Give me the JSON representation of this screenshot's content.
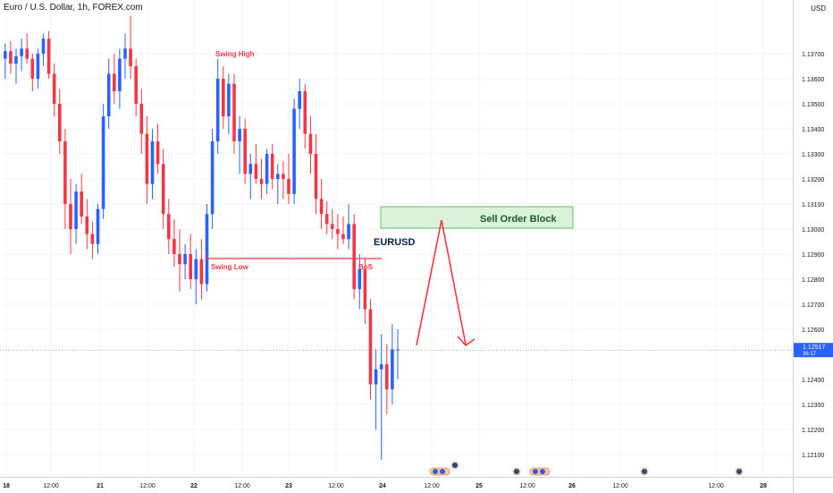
{
  "header": {
    "title": "Euro / U.S. Dollar, 1h, FOREX.com",
    "currency": "USD"
  },
  "colors": {
    "up": "#2962ff",
    "down": "#f23645",
    "drawing": "#f23645",
    "block_fill": "#d9f2d9",
    "block_border": "#4caf50",
    "price_tag": "#2962ff",
    "grid": "#f0f3fa",
    "axis_text": "#131722"
  },
  "price_axis": {
    "ticks": [
      "1.13700",
      "1.13600",
      "1.13500",
      "1.13400",
      "1.13300",
      "1.13200",
      "1.13100",
      "1.13000",
      "1.12900",
      "1.12800",
      "1.12700",
      "1.12600",
      "1.12400",
      "1.12300",
      "1.12200",
      "1.12100"
    ],
    "last_price": "1.12517",
    "countdown": "36:17"
  },
  "time_axis": {
    "ticks": [
      "18",
      "12:00",
      "21",
      "12:00",
      "22",
      "12:00",
      "23",
      "12:00",
      "24",
      "12:00",
      "25",
      "12:00",
      "26",
      "12:00",
      "12:00",
      "28"
    ]
  },
  "annotations": {
    "swing_high": "Swing High",
    "swing_low": "Swing Low",
    "bos": "BoS",
    "order_block": "Sell Order Block",
    "symbol_label": "EURUSD"
  },
  "chart_data": {
    "type": "candlestick",
    "symbol": "EURUSD",
    "interval": "1h",
    "ylim": [
      1.1205,
      1.1385
    ],
    "log_scale": false,
    "grid": true,
    "last_price": 1.12517,
    "ohlc": [
      [
        1.1368,
        1.1374,
        1.136,
        1.1371
      ],
      [
        1.1371,
        1.1375,
        1.1362,
        1.1366
      ],
      [
        1.1366,
        1.1372,
        1.1358,
        1.1369
      ],
      [
        1.1369,
        1.1376,
        1.1363,
        1.1372
      ],
      [
        1.1372,
        1.1378,
        1.1366,
        1.1368
      ],
      [
        1.1368,
        1.137,
        1.1355,
        1.136
      ],
      [
        1.136,
        1.1372,
        1.1356,
        1.137
      ],
      [
        1.137,
        1.1378,
        1.1365,
        1.1376
      ],
      [
        1.1376,
        1.1379,
        1.136,
        1.1362
      ],
      [
        1.1362,
        1.1366,
        1.1345,
        1.135
      ],
      [
        1.135,
        1.1356,
        1.133,
        1.1335
      ],
      [
        1.1335,
        1.134,
        1.13,
        1.131
      ],
      [
        1.131,
        1.132,
        1.129,
        1.13
      ],
      [
        1.13,
        1.1318,
        1.1294,
        1.1315
      ],
      [
        1.1315,
        1.1322,
        1.1302,
        1.1305
      ],
      [
        1.1305,
        1.1312,
        1.1292,
        1.1298
      ],
      [
        1.1298,
        1.1303,
        1.1288,
        1.1294
      ],
      [
        1.1294,
        1.131,
        1.129,
        1.1308
      ],
      [
        1.1308,
        1.135,
        1.1304,
        1.1345
      ],
      [
        1.1345,
        1.1368,
        1.134,
        1.1362
      ],
      [
        1.1362,
        1.137,
        1.135,
        1.1355
      ],
      [
        1.1355,
        1.1372,
        1.1348,
        1.1368
      ],
      [
        1.1368,
        1.1378,
        1.136,
        1.1372
      ],
      [
        1.1372,
        1.1385,
        1.136,
        1.1365
      ],
      [
        1.1365,
        1.1368,
        1.1345,
        1.135
      ],
      [
        1.135,
        1.1356,
        1.133,
        1.1338
      ],
      [
        1.1338,
        1.1345,
        1.131,
        1.1318
      ],
      [
        1.1318,
        1.134,
        1.1312,
        1.1335
      ],
      [
        1.1335,
        1.1342,
        1.1322,
        1.1326
      ],
      [
        1.1326,
        1.1332,
        1.13,
        1.1306
      ],
      [
        1.1306,
        1.1312,
        1.129,
        1.1296
      ],
      [
        1.1296,
        1.1304,
        1.1285,
        1.129
      ],
      [
        1.129,
        1.13,
        1.1275,
        1.1286
      ],
      [
        1.1286,
        1.1294,
        1.128,
        1.129
      ],
      [
        1.129,
        1.1298,
        1.1276,
        1.128
      ],
      [
        1.128,
        1.1292,
        1.127,
        1.1288
      ],
      [
        1.1288,
        1.1296,
        1.1272,
        1.1278
      ],
      [
        1.1278,
        1.131,
        1.1275,
        1.1306
      ],
      [
        1.1306,
        1.134,
        1.13,
        1.1335
      ],
      [
        1.1335,
        1.1368,
        1.133,
        1.136
      ],
      [
        1.136,
        1.1365,
        1.134,
        1.1345
      ],
      [
        1.1345,
        1.1362,
        1.1338,
        1.1358
      ],
      [
        1.1358,
        1.1362,
        1.133,
        1.1335
      ],
      [
        1.1335,
        1.1345,
        1.1322,
        1.134
      ],
      [
        1.134,
        1.1344,
        1.1318,
        1.1322
      ],
      [
        1.1322,
        1.133,
        1.1312,
        1.1326
      ],
      [
        1.1326,
        1.1334,
        1.1318,
        1.132
      ],
      [
        1.132,
        1.1328,
        1.1312,
        1.1318
      ],
      [
        1.1318,
        1.1332,
        1.1314,
        1.133
      ],
      [
        1.133,
        1.1334,
        1.1316,
        1.132
      ],
      [
        1.132,
        1.1326,
        1.131,
        1.1322
      ],
      [
        1.1322,
        1.1327,
        1.1312,
        1.132
      ],
      [
        1.132,
        1.133,
        1.131,
        1.1314
      ],
      [
        1.1314,
        1.1352,
        1.131,
        1.1348
      ],
      [
        1.1348,
        1.136,
        1.134,
        1.1355
      ],
      [
        1.1355,
        1.1358,
        1.1332,
        1.1338
      ],
      [
        1.1338,
        1.1345,
        1.1322,
        1.133
      ],
      [
        1.133,
        1.1338,
        1.1306,
        1.1312
      ],
      [
        1.1312,
        1.132,
        1.13,
        1.1306
      ],
      [
        1.1306,
        1.1311,
        1.1298,
        1.1302
      ],
      [
        1.1302,
        1.1308,
        1.1296,
        1.13
      ],
      [
        1.13,
        1.1306,
        1.1292,
        1.1298
      ],
      [
        1.1298,
        1.1305,
        1.1294,
        1.1296
      ],
      [
        1.1296,
        1.131,
        1.1292,
        1.1302
      ],
      [
        1.1302,
        1.1306,
        1.1272,
        1.1276
      ],
      [
        1.1276,
        1.129,
        1.1268,
        1.1284
      ],
      [
        1.1284,
        1.1288,
        1.1262,
        1.1268
      ],
      [
        1.1268,
        1.1272,
        1.1232,
        1.1238
      ],
      [
        1.1238,
        1.1252,
        1.122,
        1.1244
      ],
      [
        1.1244,
        1.1258,
        1.1208,
        1.1246
      ],
      [
        1.1246,
        1.1254,
        1.1226,
        1.1236
      ],
      [
        1.1236,
        1.1262,
        1.123,
        1.1252
      ],
      [
        1.1252,
        1.126,
        1.124,
        1.1252
      ]
    ]
  }
}
